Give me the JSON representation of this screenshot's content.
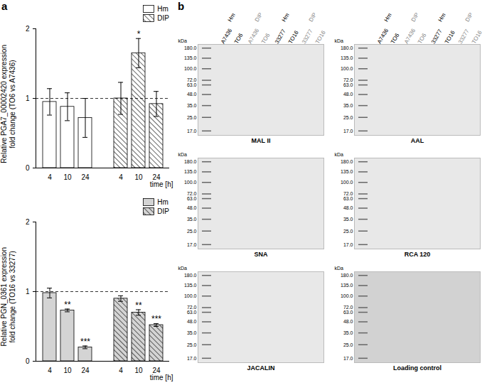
{
  "panel_labels": [
    "a",
    "b"
  ],
  "chart_data": [
    {
      "type": "bar",
      "ylabel": [
        "Relative PGA7_00002420 expression",
        "fold change (TO6 vs A7436)"
      ],
      "xlabel": "time [h]",
      "categories": [
        "4",
        "10",
        "24"
      ],
      "series": [
        {
          "name": "Hm",
          "color": "#ffffff",
          "values": [
            0.95,
            0.88,
            0.72
          ],
          "errors": [
            0.19,
            0.2,
            0.28
          ],
          "significance": [
            null,
            null,
            null
          ]
        },
        {
          "name": "DIP",
          "color": "#ffffff",
          "values": [
            1.0,
            1.65,
            0.92
          ],
          "errors": [
            0.23,
            0.21,
            0.18
          ],
          "significance": [
            null,
            "*",
            null
          ]
        }
      ],
      "ylim": [
        0,
        2
      ],
      "yticks": [
        0,
        1,
        2
      ],
      "reference_line": 1,
      "legend": "upper right"
    },
    {
      "type": "bar",
      "ylabel": [
        "Relative PGN_0361 expression",
        "fold change (TO16 vs 33277)"
      ],
      "xlabel": "time [h]",
      "categories": [
        "4",
        "10",
        "24"
      ],
      "series": [
        {
          "name": "Hm",
          "color": "#d4d4d4",
          "values": [
            0.98,
            0.73,
            0.2
          ],
          "errors": [
            0.07,
            0.02,
            0.02
          ],
          "significance": [
            null,
            "**",
            "***"
          ]
        },
        {
          "name": "DIP",
          "color": "#d4d4d4",
          "values": [
            0.9,
            0.7,
            0.52
          ],
          "errors": [
            0.04,
            0.04,
            0.02
          ],
          "significance": [
            null,
            "**",
            "***"
          ]
        }
      ],
      "ylim": [
        0,
        2
      ],
      "yticks": [
        0,
        1,
        2
      ],
      "reference_line": 1,
      "legend": "upper right"
    }
  ],
  "blots": {
    "unit": "kDa",
    "ylim": [
      15,
      200
    ],
    "markers": [
      {
        "value": 180,
        "label": "180.0"
      },
      {
        "value": 135,
        "label": "135.0"
      },
      {
        "value": 100,
        "label": "100.0"
      },
      {
        "value": 72,
        "label": "72.0"
      },
      {
        "value": 63,
        "label": "63.0"
      },
      {
        "value": 48,
        "label": "48.0"
      },
      {
        "value": 35,
        "label": "35.0"
      },
      {
        "value": 25,
        "label": "25.0"
      },
      {
        "value": 17,
        "label": "17.0"
      }
    ],
    "lane_groups": [
      {
        "strains": [
          "A7436",
          "TO6"
        ],
        "medium": "Hm",
        "color": "#000000"
      },
      {
        "strains": [
          "A7436",
          "TO6"
        ],
        "medium": "DIP",
        "color": "#888888"
      },
      {
        "strains": [
          "33277",
          "TO16"
        ],
        "medium": "Hm",
        "color": "#000000"
      },
      {
        "strains": [
          "33277",
          "TO16"
        ],
        "medium": "DIP",
        "color": "#888888"
      }
    ],
    "panels": [
      {
        "name": "MAL II"
      },
      {
        "name": "AAL"
      },
      {
        "name": "SNA"
      },
      {
        "name": "RCA 120"
      },
      {
        "name": "JACALIN"
      },
      {
        "name": "Loading control"
      }
    ]
  }
}
